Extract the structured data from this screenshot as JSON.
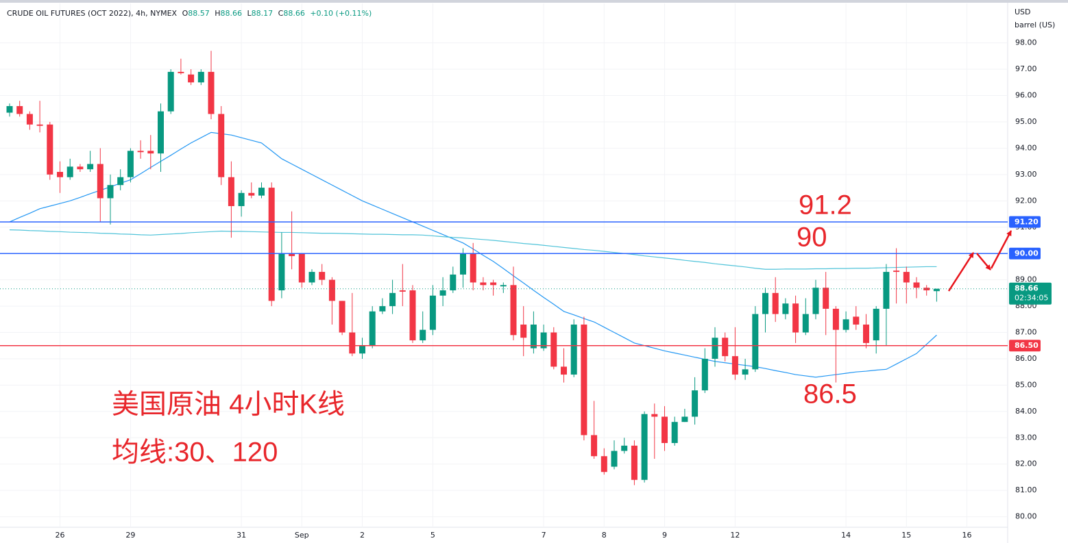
{
  "chart_data": {
    "type": "candlestick",
    "legend": {
      "symbol": "CRUDE OIL FUTURES (OCT 2022), 4h, NYMEX",
      "ohlc": [
        {
          "label": "O",
          "value": 88.57
        },
        {
          "label": "H",
          "value": 88.66
        },
        {
          "label": "L",
          "value": 88.17
        },
        {
          "label": "C",
          "value": 88.66
        }
      ],
      "change": "+0.10 (+0.11%)"
    },
    "y_axis_label": [
      "USD",
      "barrel (US)"
    ],
    "categories": [
      null,
      null,
      null,
      null,
      null,
      "26",
      null,
      null,
      null,
      null,
      null,
      null,
      "29",
      null,
      null,
      null,
      null,
      null,
      null,
      null,
      null,
      null,
      null,
      "31",
      null,
      null,
      null,
      null,
      null,
      "Sep",
      null,
      null,
      null,
      null,
      null,
      "2",
      null,
      null,
      null,
      null,
      null,
      null,
      "5",
      null,
      null,
      null,
      null,
      null,
      null,
      null,
      null,
      null,
      null,
      "7",
      null,
      null,
      null,
      null,
      null,
      "8",
      null,
      null,
      null,
      null,
      null,
      "9",
      null,
      null,
      null,
      null,
      null,
      null,
      "12",
      null,
      null,
      null,
      null,
      null,
      null,
      null,
      null,
      null,
      null,
      "14",
      null,
      null,
      null,
      null,
      null,
      "15",
      null,
      null,
      null,
      null,
      null,
      "16",
      null,
      null,
      null
    ],
    "open": [
      95.35,
      95.6,
      95.3,
      94.9,
      94.9,
      93.1,
      92.9,
      93.3,
      93.2,
      93.4,
      92.1,
      92.6,
      92.9,
      93.9,
      93.9,
      93.8,
      95.4,
      96.9,
      96.8,
      96.5,
      96.9,
      95.3,
      92.9,
      91.8,
      92.3,
      92.2,
      92.5,
      88.6,
      90.0,
      90.0,
      88.9,
      89.3,
      89.0,
      88.2,
      87.0,
      86.2,
      86.5,
      87.8,
      88.0,
      88.6,
      88.6,
      86.7,
      87.1,
      88.4,
      88.6,
      89.2,
      90.0,
      88.9,
      88.9,
      88.75,
      88.8,
      87.3,
      86.4,
      86.4,
      87.0,
      85.7,
      85.4,
      87.3,
      83.1,
      82.3,
      81.9,
      82.5,
      82.7,
      81.4,
      83.9,
      83.8,
      82.8,
      83.6,
      83.8,
      84.8,
      86.0,
      86.8,
      86.1,
      85.4,
      85.6,
      87.7,
      88.5,
      87.7,
      88.1,
      87.0,
      87.7,
      88.7,
      87.9,
      87.1,
      87.6,
      87.3,
      86.7,
      87.9,
      89.35,
      89.3,
      88.9,
      88.7,
      88.57,
      null,
      null,
      null,
      null,
      null,
      null
    ],
    "high": [
      95.7,
      95.8,
      95.4,
      95.8,
      95.0,
      93.5,
      93.6,
      93.4,
      93.9,
      94.0,
      93.0,
      93.2,
      94.0,
      94.3,
      94.5,
      95.7,
      97.0,
      97.4,
      97.0,
      97.0,
      97.7,
      95.6,
      93.5,
      92.4,
      92.7,
      92.7,
      92.7,
      90.8,
      91.6,
      90.0,
      89.4,
      89.6,
      89.1,
      88.2,
      88.5,
      86.8,
      88.0,
      88.3,
      89.0,
      89.6,
      88.8,
      87.8,
      88.8,
      89.1,
      89.5,
      90.2,
      90.4,
      89.1,
      89.0,
      88.9,
      89.5,
      88.0,
      87.8,
      87.3,
      87.2,
      86.4,
      87.5,
      87.6,
      84.4,
      82.6,
      82.9,
      83.0,
      82.9,
      84.0,
      84.3,
      84.2,
      83.8,
      84.1,
      85.3,
      86.4,
      87.2,
      87.0,
      87.2,
      86.0,
      88.0,
      88.7,
      89.1,
      88.3,
      88.4,
      88.3,
      89.0,
      89.3,
      88.0,
      87.8,
      88.0,
      87.7,
      88.0,
      89.6,
      90.2,
      89.5,
      89.1,
      88.8,
      88.66,
      null,
      null,
      null,
      null,
      null,
      null
    ],
    "low": [
      95.2,
      95.2,
      94.7,
      94.6,
      92.8,
      92.3,
      92.8,
      93.1,
      93.1,
      91.2,
      91.1,
      92.4,
      92.7,
      93.6,
      93.2,
      93.1,
      95.3,
      96.8,
      96.4,
      96.4,
      95.1,
      92.6,
      90.6,
      91.4,
      92.1,
      92.1,
      88.0,
      88.3,
      89.4,
      88.7,
      88.8,
      88.8,
      87.3,
      86.9,
      86.1,
      86.0,
      86.4,
      87.7,
      87.7,
      88.0,
      86.6,
      86.6,
      86.9,
      88.0,
      88.5,
      88.7,
      88.6,
      88.6,
      88.4,
      88.5,
      86.7,
      86.1,
      86.2,
      86.3,
      85.6,
      85.1,
      85.3,
      82.9,
      82.2,
      81.6,
      81.8,
      82.4,
      81.2,
      81.3,
      82.2,
      82.5,
      82.7,
      83.6,
      83.5,
      84.7,
      85.7,
      85.9,
      85.2,
      85.2,
      85.5,
      87.0,
      87.4,
      87.5,
      86.6,
      86.9,
      87.5,
      86.9,
      85.1,
      87.0,
      87.1,
      86.4,
      86.2,
      86.5,
      88.1,
      88.1,
      88.3,
      88.4,
      88.17,
      null,
      null,
      null,
      null,
      null,
      null
    ],
    "close": [
      95.6,
      95.3,
      94.9,
      94.85,
      93.0,
      92.9,
      93.3,
      93.2,
      93.4,
      92.1,
      92.6,
      92.9,
      93.9,
      93.85,
      93.8,
      95.4,
      96.9,
      96.85,
      96.5,
      96.9,
      95.3,
      92.9,
      91.8,
      92.3,
      92.2,
      92.5,
      88.2,
      90.0,
      89.9,
      88.9,
      89.3,
      89.0,
      88.2,
      87.0,
      86.2,
      86.5,
      87.8,
      88.0,
      88.5,
      88.55,
      86.7,
      87.1,
      88.4,
      88.6,
      89.2,
      90.0,
      88.9,
      88.8,
      88.8,
      88.8,
      86.9,
      86.8,
      87.3,
      87.0,
      85.7,
      85.4,
      87.3,
      83.1,
      82.3,
      81.7,
      82.5,
      82.7,
      81.4,
      83.9,
      83.8,
      82.8,
      83.6,
      83.8,
      84.8,
      86.0,
      86.8,
      86.1,
      85.4,
      85.6,
      87.7,
      88.5,
      87.7,
      88.1,
      87.0,
      87.7,
      88.7,
      87.9,
      87.1,
      87.5,
      87.3,
      86.6,
      87.9,
      89.3,
      89.3,
      88.9,
      88.7,
      88.6,
      88.66,
      null,
      null,
      null,
      null,
      null,
      null
    ],
    "up_color": "#089981",
    "down_color": "#f23645",
    "series": [
      {
        "name": "MA30",
        "color": "#2196f3",
        "values": [
          91.2,
          91.37,
          91.53,
          91.7,
          91.8,
          91.9,
          92.0,
          92.13,
          92.27,
          92.4,
          92.53,
          92.67,
          92.8,
          93.03,
          93.27,
          93.5,
          93.73,
          93.97,
          94.2,
          94.4,
          94.6,
          94.55,
          94.5,
          94.4,
          94.3,
          94.2,
          93.9,
          93.6,
          93.4,
          93.2,
          93.0,
          92.8,
          92.6,
          92.4,
          92.2,
          92.0,
          91.84,
          91.68,
          91.52,
          91.36,
          91.2,
          91.04,
          90.88,
          90.72,
          90.56,
          90.4,
          90.17,
          89.93,
          89.7,
          89.43,
          89.15,
          88.88,
          88.6,
          88.33,
          88.07,
          87.8,
          87.67,
          87.53,
          87.4,
          87.2,
          87.0,
          86.8,
          86.6,
          86.5,
          86.4,
          86.3,
          86.22,
          86.14,
          86.06,
          85.98,
          85.9,
          85.85,
          85.8,
          85.75,
          85.7,
          85.63,
          85.55,
          85.48,
          85.4,
          85.35,
          85.3,
          85.35,
          85.4,
          85.45,
          85.5,
          85.53,
          85.57,
          85.6,
          85.8,
          86.0,
          86.2,
          86.55,
          86.9,
          null,
          null,
          null,
          null,
          null,
          null
        ]
      },
      {
        "name": "MA120",
        "color": "#4fc3d9",
        "values": [
          90.9,
          90.89,
          90.87,
          90.86,
          90.84,
          90.83,
          90.81,
          90.8,
          90.79,
          90.77,
          90.76,
          90.74,
          90.73,
          90.71,
          90.7,
          90.72,
          90.74,
          90.76,
          90.79,
          90.81,
          90.83,
          90.85,
          90.84,
          90.84,
          90.83,
          90.82,
          90.81,
          90.8,
          90.8,
          90.79,
          90.78,
          90.77,
          90.77,
          90.76,
          90.75,
          90.74,
          90.73,
          90.73,
          90.72,
          90.71,
          90.71,
          90.7,
          90.67,
          90.64,
          90.61,
          90.59,
          90.56,
          90.53,
          90.5,
          90.46,
          90.42,
          90.38,
          90.35,
          90.31,
          90.27,
          90.23,
          90.19,
          90.15,
          90.12,
          90.08,
          90.04,
          90.0,
          89.96,
          89.91,
          89.87,
          89.83,
          89.79,
          89.74,
          89.7,
          89.66,
          89.61,
          89.57,
          89.53,
          89.49,
          89.44,
          89.4,
          89.4,
          89.41,
          89.41,
          89.41,
          89.42,
          89.42,
          89.43,
          89.43,
          89.44,
          89.44,
          89.45,
          89.46,
          89.47,
          89.48,
          89.49,
          89.5,
          89.5,
          null,
          null,
          null,
          null,
          null,
          null
        ]
      }
    ],
    "levels": [
      {
        "value": 91.2,
        "label": "91.20",
        "color": "#2962ff"
      },
      {
        "value": 90.0,
        "label": "90.00",
        "color": "#2962ff"
      },
      {
        "value": 86.5,
        "label": "86.50",
        "color": "#f23645"
      }
    ],
    "last_price": 88.66,
    "countdown": "02:34:05",
    "annotations": [
      "91.2",
      "90",
      "86.5",
      "美国原油 4小时K线",
      "均线:30、120"
    ],
    "ylim": [
      79.6,
      99.5
    ],
    "yticks": [
      {
        "value": 80,
        "label": "80.00"
      },
      {
        "value": 81,
        "label": "81.00"
      },
      {
        "value": 82,
        "label": "82.00"
      },
      {
        "value": 83,
        "label": "83.00"
      },
      {
        "value": 84,
        "label": "84.00"
      },
      {
        "value": 85,
        "label": "85.00"
      },
      {
        "value": 86,
        "label": "86.00"
      },
      {
        "value": 87,
        "label": "87.00"
      },
      {
        "value": 88,
        "label": "88.00"
      },
      {
        "value": 89,
        "label": "89.00"
      },
      {
        "value": 90,
        "label": "90.00"
      },
      {
        "value": 91,
        "label": "91.00"
      },
      {
        "value": 92,
        "label": "92.00"
      },
      {
        "value": 93,
        "label": "93.00"
      },
      {
        "value": 94,
        "label": "94.00"
      },
      {
        "value": 95,
        "label": "95.00"
      },
      {
        "value": 96,
        "label": "96.00"
      },
      {
        "value": 97,
        "label": "97.00"
      },
      {
        "value": 98,
        "label": "98.00"
      }
    ],
    "grid": true
  }
}
